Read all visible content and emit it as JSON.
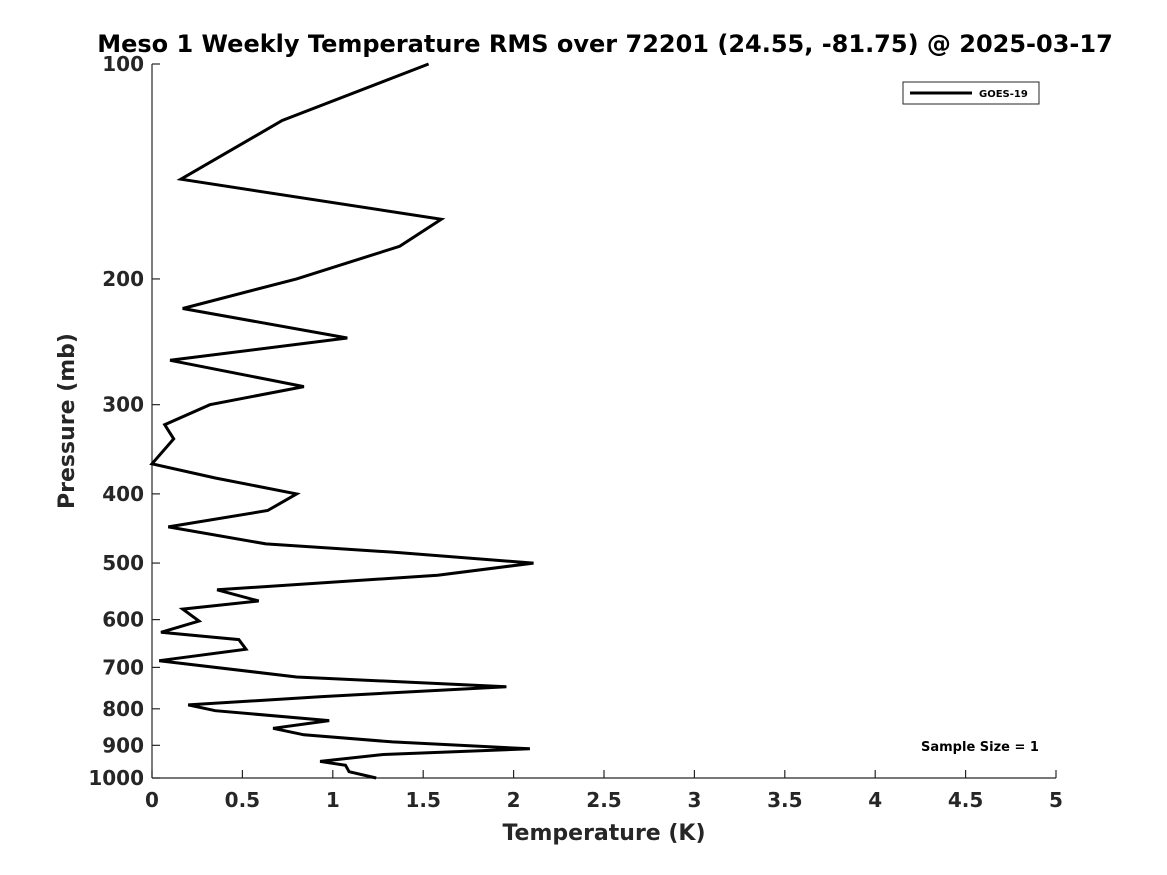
{
  "chart_data": {
    "type": "line",
    "title": "Meso 1 Weekly Temperature RMS over 72201 (24.55, -81.75) @ 2025-03-17",
    "xlabel": "Temperature (K)",
    "ylabel": "Pressure (mb)",
    "xlim": [
      0,
      5
    ],
    "ylim": [
      100,
      1000
    ],
    "y_scale": "log",
    "y_inverted": true,
    "x_ticks": [
      "0",
      "0.5",
      "1",
      "1.5",
      "2",
      "2.5",
      "3",
      "3.5",
      "4",
      "4.5",
      "5"
    ],
    "y_ticks": [
      "100",
      "200",
      "300",
      "400",
      "500",
      "600",
      "700",
      "800",
      "900",
      "1000"
    ],
    "grid": false,
    "legend_position": "top-right",
    "series": [
      {
        "name": "GOES-19",
        "color": "#000000",
        "x": [
          1.53,
          0.72,
          0.16,
          1.6,
          1.37,
          0.8,
          0.17,
          1.08,
          0.1,
          0.84,
          0.32,
          0.07,
          0.12,
          0.0,
          0.35,
          0.8,
          0.64,
          0.09,
          0.63,
          1.34,
          2.11,
          1.58,
          0.36,
          0.59,
          0.17,
          0.26,
          0.05,
          0.48,
          0.52,
          0.04,
          0.8,
          1.96,
          0.94,
          0.2,
          0.35,
          0.98,
          0.67,
          0.84,
          1.33,
          2.09,
          1.28,
          0.93,
          1.07,
          1.09,
          1.24
        ],
        "y": [
          100,
          120,
          145,
          165,
          180,
          200,
          220,
          242,
          260,
          283,
          300,
          320,
          335,
          363,
          380,
          400,
          422,
          445,
          470,
          483,
          500,
          520,
          545,
          565,
          580,
          603,
          625,
          640,
          660,
          685,
          722,
          745,
          769,
          790,
          805,
          831,
          852,
          870,
          890,
          910,
          927,
          948,
          960,
          980,
          1000
        ]
      }
    ],
    "annotations": [
      "Sample Size = 1"
    ]
  }
}
